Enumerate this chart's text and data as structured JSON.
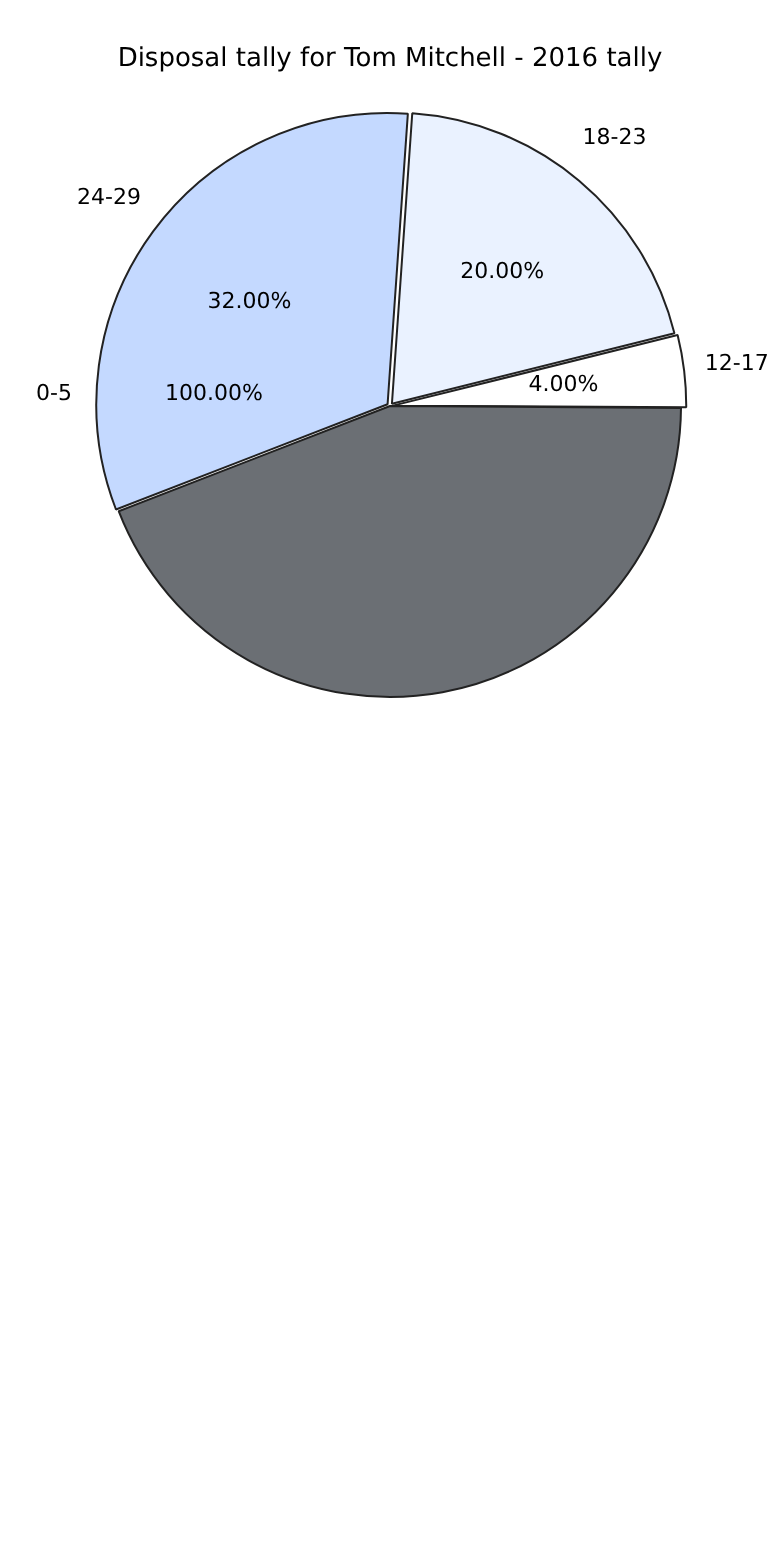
{
  "chart_data": {
    "type": "pie",
    "title": "Disposal tally for Tom Mitchell - 2016 tally",
    "categories": [
      "18-23",
      "12-17",
      null,
      "24-29"
    ],
    "values": [
      20,
      4,
      44,
      32
    ],
    "colors": [
      "#eaf2ff",
      "#ffffff",
      "#6b6f74",
      "#c4d9ff"
    ],
    "value_labels": [
      "20.00%",
      "4.00%",
      null,
      "32.00%"
    ],
    "annotations": [
      "0-5",
      "100.00%"
    ],
    "legend": false
  }
}
